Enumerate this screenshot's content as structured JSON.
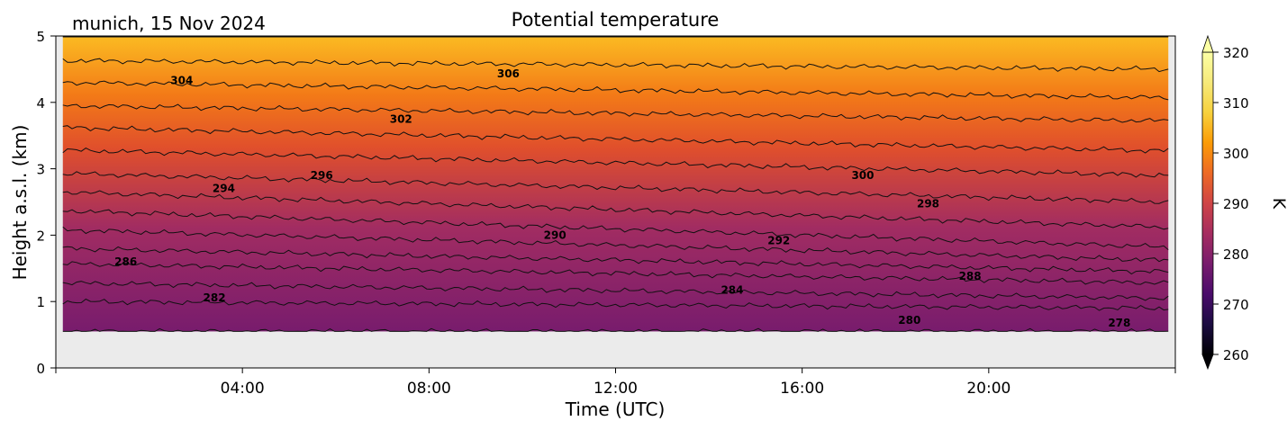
{
  "chart_data": {
    "type": "heatmap",
    "title": "Potential temperature",
    "annotation": "munich, 15 Nov 2024",
    "xlabel": "Time (UTC)",
    "ylabel": "Height a.s.l. (km)",
    "xlim_hours": [
      0,
      24
    ],
    "ylim_km": [
      0,
      5
    ],
    "x_ticks": [
      {
        "hour": 4,
        "label": "04:00"
      },
      {
        "hour": 8,
        "label": "08:00"
      },
      {
        "hour": 12,
        "label": "12:00"
      },
      {
        "hour": 16,
        "label": "16:00"
      },
      {
        "hour": 20,
        "label": "20:00"
      }
    ],
    "y_ticks": [
      {
        "value": 0,
        "label": "0"
      },
      {
        "value": 1,
        "label": "1"
      },
      {
        "value": 2,
        "label": "2"
      },
      {
        "value": 3,
        "label": "3"
      },
      {
        "value": 4,
        "label": "4"
      },
      {
        "value": 5,
        "label": "5"
      }
    ],
    "data_extent": {
      "x_start_h": 0.15,
      "x_end_h": 23.85,
      "y_bottom_km": 0.55
    },
    "colorbar": {
      "label": "K",
      "min": 260,
      "max": 320,
      "extend": "both",
      "colormap": "inferno",
      "ticks": [
        {
          "value": 260,
          "label": "260"
        },
        {
          "value": 270,
          "label": "270"
        },
        {
          "value": 280,
          "label": "280"
        },
        {
          "value": 290,
          "label": "290"
        },
        {
          "value": 300,
          "label": "300"
        },
        {
          "value": 310,
          "label": "310"
        },
        {
          "value": 320,
          "label": "320"
        }
      ]
    },
    "contours": [
      {
        "level": 280,
        "start_km": 0.55,
        "end_km": 0.55
      },
      {
        "level": 282,
        "start_km": 1.0,
        "end_km": 0.9
      },
      {
        "level": 284,
        "start_km": 1.28,
        "end_km": 1.05
      },
      {
        "level": 286,
        "start_km": 1.57,
        "end_km": 1.28
      },
      {
        "level": 288,
        "start_km": 1.8,
        "end_km": 1.45
      },
      {
        "level": 290,
        "start_km": 2.08,
        "end_km": 1.62
      },
      {
        "level": 292,
        "start_km": 2.37,
        "end_km": 1.82
      },
      {
        "level": 294,
        "start_km": 2.65,
        "end_km": 2.12
      },
      {
        "level": 296,
        "start_km": 2.93,
        "end_km": 2.5
      },
      {
        "level": 298,
        "start_km": 3.28,
        "end_km": 2.9
      },
      {
        "level": 300,
        "start_km": 3.62,
        "end_km": 3.27
      },
      {
        "level": 302,
        "start_km": 3.95,
        "end_km": 3.72
      },
      {
        "level": 304,
        "start_km": 4.3,
        "end_km": 4.07
      },
      {
        "level": 306,
        "start_km": 4.63,
        "end_km": 4.5
      }
    ],
    "contour_labels": [
      {
        "text": "304",
        "hour": 2.7,
        "km": 4.33
      },
      {
        "text": "306",
        "hour": 9.7,
        "km": 4.43
      },
      {
        "text": "302",
        "hour": 7.4,
        "km": 3.75
      },
      {
        "text": "300",
        "hour": 17.3,
        "km": 2.9
      },
      {
        "text": "296",
        "hour": 5.7,
        "km": 2.9
      },
      {
        "text": "294",
        "hour": 3.6,
        "km": 2.7
      },
      {
        "text": "298",
        "hour": 18.7,
        "km": 2.47
      },
      {
        "text": "290",
        "hour": 10.7,
        "km": 2.0
      },
      {
        "text": "292",
        "hour": 15.5,
        "km": 1.92
      },
      {
        "text": "286",
        "hour": 1.5,
        "km": 1.6
      },
      {
        "text": "288",
        "hour": 19.6,
        "km": 1.38
      },
      {
        "text": "284",
        "hour": 14.5,
        "km": 1.17
      },
      {
        "text": "282",
        "hour": 3.4,
        "km": 1.06
      },
      {
        "text": "280",
        "hour": 18.3,
        "km": 0.72
      },
      {
        "text": "278",
        "hour": 22.8,
        "km": 0.68
      }
    ],
    "field_colors": {
      "bottom": "#781c6d",
      "mid": "#e3541f",
      "top": "#fbba1f",
      "no_data": "#ebebeb"
    }
  }
}
